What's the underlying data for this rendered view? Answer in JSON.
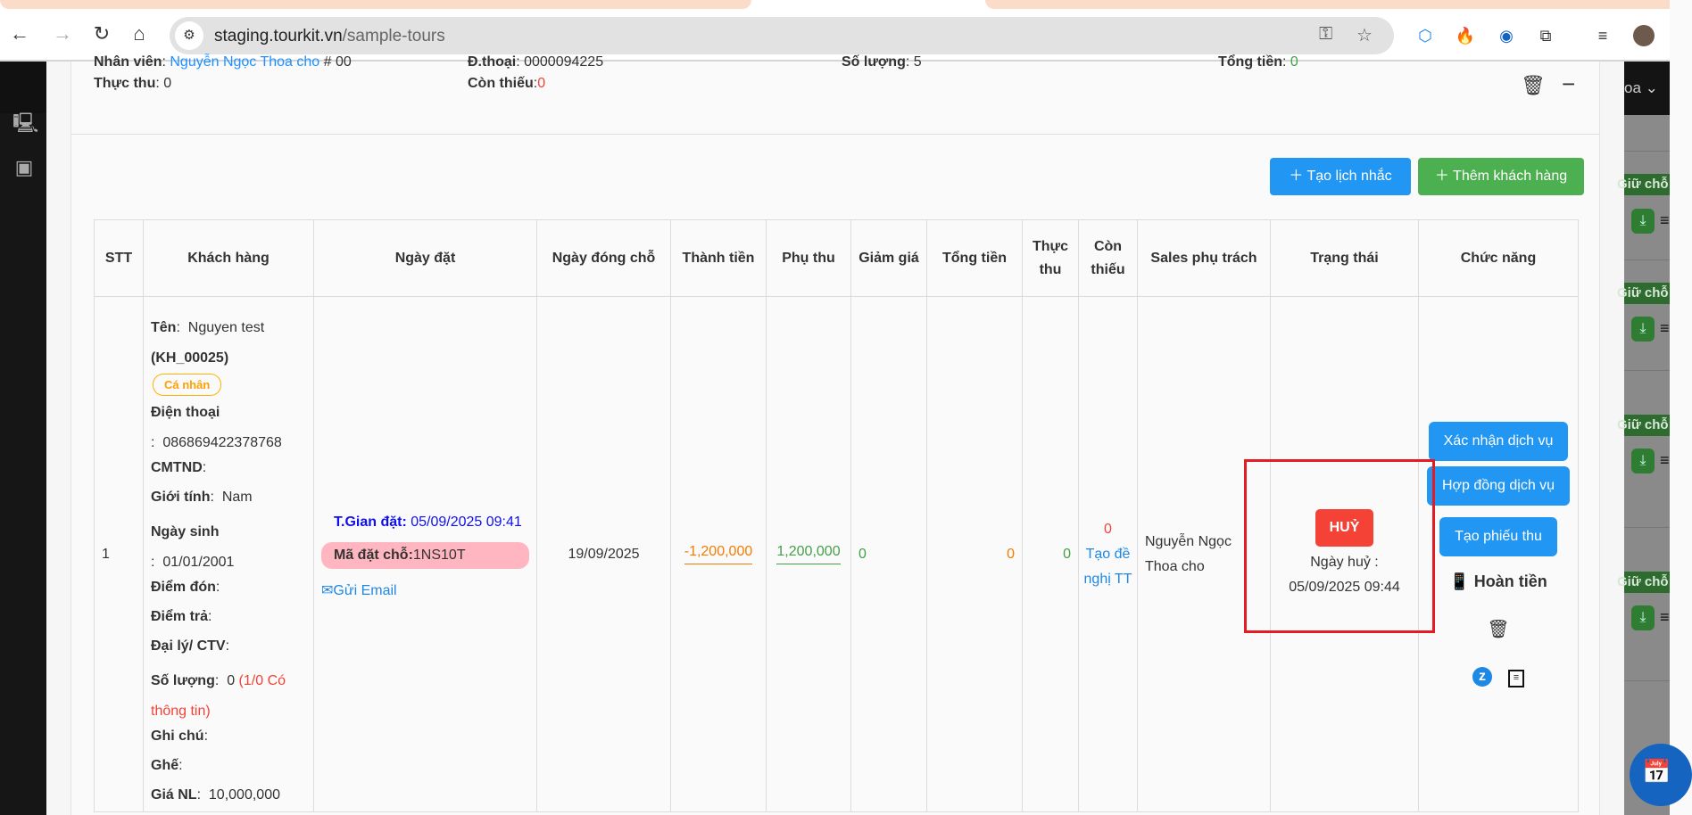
{
  "browser": {
    "url_host": "staging.tourkit.vn",
    "url_path": "/sample-tours"
  },
  "summary": {
    "staff_label": "Nhân viên",
    "staff_value": "Nguyễn Ngọc Thoa cho",
    "staff_suffix": "# 00",
    "phone_label": "Đ.thoại",
    "phone_value": "0000094225",
    "qty_label": "Số lượng",
    "qty_value": "5",
    "total_label": "Tổng tiền",
    "total_value": "0",
    "paid_label": "Thực thu",
    "paid_value": "0",
    "owed_label": "Còn thiếu",
    "owed_value": "0"
  },
  "actions": {
    "reminder_label": "Tạo lịch nhắc",
    "add_customer_label": "Thêm khách hàng"
  },
  "table": {
    "headers": [
      "STT",
      "Khách hàng",
      "Ngày đặt",
      "Ngày đóng chỗ",
      "Thành tiền",
      "Phụ thu",
      "Giảm giá",
      "Tổng tiền",
      "Thực thu",
      "Còn thiếu",
      "Sales phụ trách",
      "Trạng thái",
      "Chức năng"
    ],
    "row": {
      "stt": "1",
      "customer": {
        "name_label": "Tên",
        "name": "Nguyen test",
        "code": "(KH_00025)",
        "type_badge": "Cá nhân",
        "phone_label": "Điện thoại",
        "phone": "086869422378768",
        "id_label": "CMTND",
        "gender_label": "Giới tính",
        "gender": "Nam",
        "dob_label": "Ngày sinh",
        "dob": "01/01/2001",
        "pickup_label": "Điểm đón",
        "dropoff_label": "Điểm trả",
        "agent_label": "Đại lý/ CTV",
        "qty_label": "Số lượng",
        "qty": "0",
        "qty_note": "(1/0 Có thông tin)",
        "note_label": "Ghi chú",
        "seat_label": "Ghế",
        "price_label": "Giá NL",
        "price": "10,000,000"
      },
      "booking": {
        "time_label": "T.Gian đặt:",
        "time": "05/09/2025 09:41",
        "code_label": "Mã đặt chỗ:",
        "code": "1NS10T",
        "email_label": "Gửi Email"
      },
      "close_date": "19/09/2025",
      "amount": "-1,200,000",
      "surcharge": "1,200,000",
      "discount": "0",
      "total": "0",
      "paid": "0",
      "owed": "0",
      "owed_link": "Tạo đề nghị TT",
      "sales": "Nguyễn Ngọc Thoa cho",
      "status": "HUỶ",
      "cancel_label": "Ngày huỷ :",
      "cancel_date": "05/09/2025 09:44",
      "functions": {
        "confirm": "Xác nhận dịch vụ",
        "contract": "Hợp đồng dịch vụ",
        "receipt": "Tạo phiếu thu",
        "refund": "Hoàn tiền"
      }
    }
  },
  "background_panel": {
    "top_text": "oa",
    "chip_label": "Giữ chỗ"
  },
  "colors": {
    "primary": "#2196f3",
    "success": "#4caf50",
    "danger": "#f44336",
    "highlight_box": "#e21c22",
    "badge": "#ffa000",
    "booking_code_bg": "#ffb6c1"
  }
}
